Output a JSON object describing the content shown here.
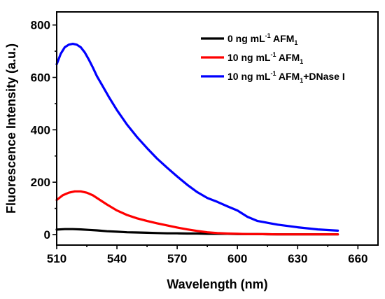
{
  "chart_data": {
    "type": "line",
    "xlabel": "Wavelength (nm)",
    "ylabel": "Fluorescence Intensity (a.u.)",
    "xlim": [
      510,
      670
    ],
    "ylim": [
      -40,
      850
    ],
    "xticks": [
      510,
      540,
      570,
      600,
      630,
      660
    ],
    "yticks": [
      0,
      200,
      400,
      600,
      800
    ],
    "grid": false,
    "legend_position": "top-right",
    "series": [
      {
        "name": "0 ng mL-1 AFM1",
        "legend": {
          "prefix": "0 ng mL",
          "sup": "-1",
          "mid": " AFM",
          "sub": "1",
          "suffix": ""
        },
        "color": "#000000",
        "x": [
          510,
          514,
          518,
          522,
          526,
          530,
          535,
          540,
          545,
          550,
          555,
          560,
          565,
          570,
          575,
          580,
          585,
          590,
          595,
          600,
          605,
          610,
          620,
          630,
          640,
          650
        ],
        "y": [
          19,
          21,
          21,
          20,
          18,
          16,
          13,
          11,
          9,
          8,
          7,
          6,
          5,
          5,
          4,
          4,
          3,
          3,
          3,
          2,
          2,
          2,
          1,
          1,
          1,
          1
        ]
      },
      {
        "name": "10 ng mL-1 AFM1",
        "legend": {
          "prefix": "10 ng mL",
          "sup": "-1",
          "mid": " AFM",
          "sub": "1",
          "suffix": ""
        },
        "color": "#ff0000",
        "x": [
          510,
          513,
          516,
          519,
          522,
          525,
          528,
          531,
          535,
          540,
          545,
          550,
          555,
          560,
          565,
          570,
          575,
          580,
          585,
          590,
          595,
          600,
          605,
          610,
          620,
          630,
          640,
          650
        ],
        "y": [
          132,
          150,
          160,
          165,
          165,
          160,
          150,
          135,
          115,
          92,
          75,
          62,
          52,
          43,
          35,
          27,
          20,
          14,
          9,
          6,
          4,
          3,
          2,
          2,
          1,
          1,
          1,
          1
        ]
      },
      {
        "name": "10 ng mL-1 AFM1+DNase I",
        "legend": {
          "prefix": "10 ng mL",
          "sup": "-1",
          "mid": " AFM",
          "sub": "1",
          "suffix": "+DNase I"
        },
        "color": "#0000ff",
        "x": [
          510,
          512,
          514,
          516,
          518,
          520,
          522,
          524,
          526,
          528,
          530,
          533,
          536,
          540,
          545,
          550,
          555,
          560,
          565,
          570,
          575,
          580,
          585,
          590,
          595,
          600,
          605,
          610,
          620,
          630,
          640,
          650
        ],
        "y": [
          650,
          690,
          715,
          725,
          728,
          725,
          715,
          695,
          668,
          638,
          605,
          565,
          525,
          475,
          420,
          372,
          330,
          290,
          255,
          222,
          190,
          162,
          140,
          125,
          108,
          92,
          68,
          52,
          38,
          28,
          20,
          15
        ]
      }
    ]
  }
}
